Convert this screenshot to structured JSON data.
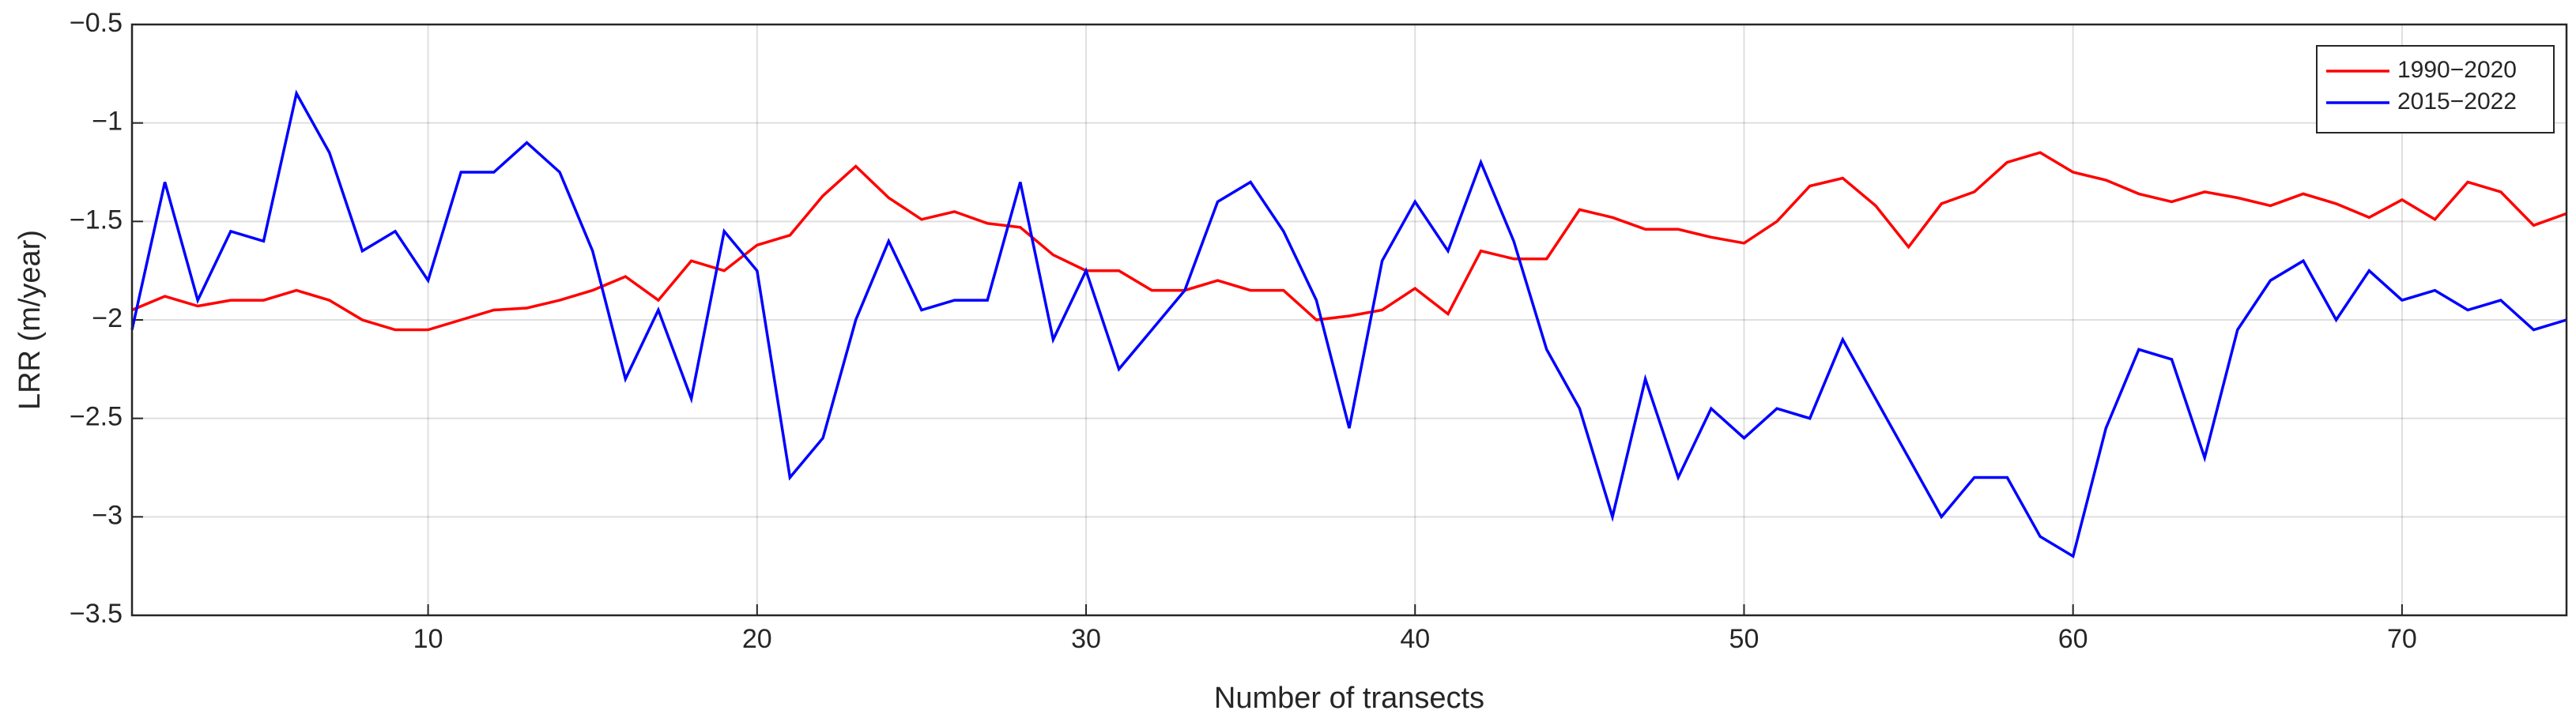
{
  "chart_data": {
    "type": "line",
    "x_label": "Number of transects",
    "y_label": "LRR (m/year)",
    "x": [
      1,
      2,
      3,
      4,
      5,
      6,
      7,
      8,
      9,
      10,
      11,
      12,
      13,
      14,
      15,
      16,
      17,
      18,
      19,
      20,
      21,
      22,
      23,
      24,
      25,
      26,
      27,
      28,
      29,
      30,
      31,
      32,
      33,
      34,
      35,
      36,
      37,
      38,
      39,
      40,
      41,
      42,
      43,
      44,
      45,
      46,
      47,
      48,
      49,
      50,
      51,
      52,
      53,
      54,
      55,
      56,
      57,
      58,
      59,
      60,
      61,
      62,
      63,
      64,
      65,
      66,
      67,
      68,
      69,
      70,
      71,
      72,
      73,
      74,
      75
    ],
    "series": [
      {
        "name": "1990−2020",
        "color": "#ff0000",
        "values": [
          -1.95,
          -1.88,
          -1.93,
          -1.9,
          -1.9,
          -1.85,
          -1.9,
          -2.0,
          -2.05,
          -2.05,
          -2.0,
          -1.95,
          -1.94,
          -1.9,
          -1.85,
          -1.78,
          -1.9,
          -1.7,
          -1.75,
          -1.62,
          -1.57,
          -1.37,
          -1.22,
          -1.38,
          -1.49,
          -1.45,
          -1.51,
          -1.53,
          -1.67,
          -1.75,
          -1.75,
          -1.85,
          -1.85,
          -1.8,
          -1.85,
          -1.85,
          -2.0,
          -1.98,
          -1.95,
          -1.84,
          -1.97,
          -1.65,
          -1.69,
          -1.69,
          -1.44,
          -1.48,
          -1.54,
          -1.54,
          -1.58,
          -1.61,
          -1.5,
          -1.32,
          -1.28,
          -1.42,
          -1.63,
          -1.41,
          -1.35,
          -1.2,
          -1.15,
          -1.25,
          -1.29,
          -1.36,
          -1.4,
          -1.35,
          -1.38,
          -1.42,
          -1.36,
          -1.41,
          -1.48,
          -1.39,
          -1.49,
          -1.3,
          -1.35,
          -1.52,
          -1.46
        ]
      },
      {
        "name": "2015−2022",
        "color": "#0000ff",
        "values": [
          -2.05,
          -1.3,
          -1.9,
          -1.55,
          -1.6,
          -0.85,
          -1.15,
          -1.65,
          -1.55,
          -1.8,
          -1.25,
          -1.25,
          -1.1,
          -1.25,
          -1.65,
          -2.3,
          -1.95,
          -2.4,
          -1.55,
          -1.75,
          -2.8,
          -2.6,
          -2.0,
          -1.6,
          -1.95,
          -1.9,
          -1.9,
          -1.3,
          -2.1,
          -1.75,
          -2.25,
          -2.05,
          -1.85,
          -1.4,
          -1.3,
          -1.55,
          -1.9,
          -2.55,
          -1.7,
          -1.4,
          -1.65,
          -1.2,
          -1.6,
          -2.15,
          -2.45,
          -3.0,
          -2.3,
          -2.8,
          -2.45,
          -2.6,
          -2.45,
          -2.5,
          -2.1,
          -2.4,
          -2.7,
          -3.0,
          -2.8,
          -2.8,
          -3.1,
          -3.2,
          -2.55,
          -2.15,
          -2.2,
          -2.7,
          -2.05,
          -1.8,
          -1.7,
          -2.0,
          -1.75,
          -1.9,
          -1.85,
          -1.95,
          -1.9,
          -2.05,
          -2.0
        ]
      }
    ],
    "xlim": [
      1,
      75
    ],
    "xticks": [
      10,
      20,
      30,
      40,
      50,
      60,
      70
    ],
    "ylim": [
      -3.5,
      -0.5
    ],
    "yticks": [
      {
        "value": -3.5,
        "label": "−3.5"
      },
      {
        "value": -3,
        "label": "−3"
      },
      {
        "value": -2.5,
        "label": "−2.5"
      },
      {
        "value": -2,
        "label": "−2"
      },
      {
        "value": -1.5,
        "label": "−1.5"
      },
      {
        "value": -1,
        "label": "−1"
      },
      {
        "value": -0.5,
        "label": "−0.5"
      }
    ],
    "grid": true,
    "legend": "top-right"
  }
}
